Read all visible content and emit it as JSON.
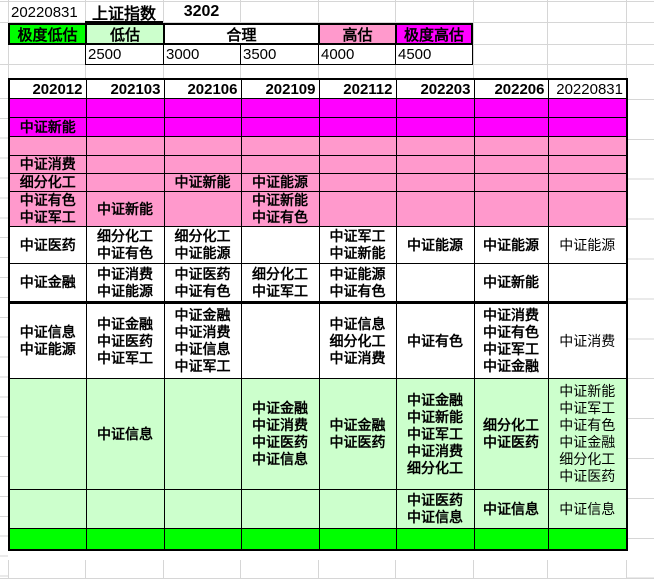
{
  "title_row": {
    "date": "20220831",
    "index_label": "上证指数",
    "index_value": "3202"
  },
  "valuation_scale": {
    "levels": [
      {
        "label": "极度低估",
        "color": "#00FF00"
      },
      {
        "label": "低估",
        "color": "#CCFFCC"
      },
      {
        "label": "合理",
        "color": "#FFFFFF"
      },
      {
        "label": "高估",
        "color": "#FF99CC"
      },
      {
        "label": "极度高估",
        "color": "#FF00FF"
      }
    ],
    "thresholds": [
      "2500",
      "3000",
      "3500",
      "4000",
      "4500"
    ]
  },
  "colors": {
    "extreme_over": "#FF00FF",
    "over": "#FF99CC",
    "fair": "#FFFFFF",
    "under": "#CCFFCC",
    "extreme_under": "#00FF00",
    "gridline": "#D6D6D6"
  },
  "table": {
    "columns": [
      "202012",
      "202103",
      "202106",
      "202109",
      "202112",
      "202203",
      "202206",
      "20220831"
    ],
    "rows": [
      {
        "band": "extreme_over",
        "cells": [
          [],
          [],
          [],
          [],
          [],
          [],
          [],
          []
        ]
      },
      {
        "band": "extreme_over",
        "cells": [
          [
            "中证新能"
          ],
          [],
          [],
          [],
          [],
          [],
          [],
          []
        ]
      },
      {
        "band": "over",
        "cells": [
          [],
          [],
          [],
          [],
          [],
          [],
          [],
          []
        ]
      },
      {
        "band": "over",
        "cells": [
          [
            "中证消费"
          ],
          [],
          [],
          [],
          [],
          [],
          [],
          []
        ]
      },
      {
        "band": "over",
        "cells": [
          [
            "细分化工"
          ],
          [],
          [
            "中证新能"
          ],
          [
            "中证能源"
          ],
          [],
          [],
          [],
          []
        ]
      },
      {
        "band": "over",
        "cells": [
          [
            "中证有色",
            "中证军工"
          ],
          [
            "中证新能"
          ],
          [],
          [
            "中证新能",
            "中证有色"
          ],
          [],
          [],
          [],
          []
        ]
      },
      {
        "band": "fair",
        "cells": [
          [
            "中证医药"
          ],
          [
            "细分化工",
            "中证有色"
          ],
          [
            "细分化工",
            "中证能源"
          ],
          [],
          [
            "中证军工",
            "中证新能"
          ],
          [
            "中证能源"
          ],
          [
            "中证能源"
          ],
          [
            "中证能源"
          ]
        ]
      },
      {
        "band": "fair",
        "thick_bottom": true,
        "cells": [
          [
            "中证金融"
          ],
          [
            "中证消费",
            "中证能源"
          ],
          [
            "中证医药",
            "中证有色"
          ],
          [
            "细分化工",
            "中证军工"
          ],
          [
            "中证能源",
            "中证有色"
          ],
          [],
          [
            "中证新能"
          ],
          []
        ]
      },
      {
        "band": "fair",
        "cells": [
          [
            "中证信息",
            "中证能源"
          ],
          [
            "中证金融",
            "中证医药",
            "中证军工"
          ],
          [
            "中证金融",
            "中证消费",
            "中证信息",
            "中证军工"
          ],
          [],
          [
            "中证信息",
            "细分化工",
            "中证消费"
          ],
          [
            "中证有色"
          ],
          [
            "中证消费",
            "中证有色",
            "中证军工",
            "中证金融"
          ],
          [
            "中证消费"
          ]
        ]
      },
      {
        "band": "under",
        "cells": [
          [],
          [
            "中证信息"
          ],
          [],
          [
            "中证金融",
            "中证消费",
            "中证医药",
            "中证信息"
          ],
          [
            "中证金融",
            "中证医药"
          ],
          [
            "中证金融",
            "中证新能",
            "中证军工",
            "中证消费",
            "细分化工"
          ],
          [
            "细分化工",
            "中证医药"
          ],
          [
            "中证新能",
            "中证军工",
            "中证有色",
            "中证金融",
            "细分化工",
            "中证医药"
          ]
        ]
      },
      {
        "band": "under",
        "cells": [
          [],
          [],
          [],
          [],
          [],
          [
            "中证医药",
            "中证信息"
          ],
          [
            "中证信息"
          ],
          [
            "中证信息"
          ]
        ]
      },
      {
        "band": "extreme_under",
        "cells": [
          [],
          [],
          [],
          [],
          [],
          [],
          [],
          []
        ]
      }
    ]
  }
}
